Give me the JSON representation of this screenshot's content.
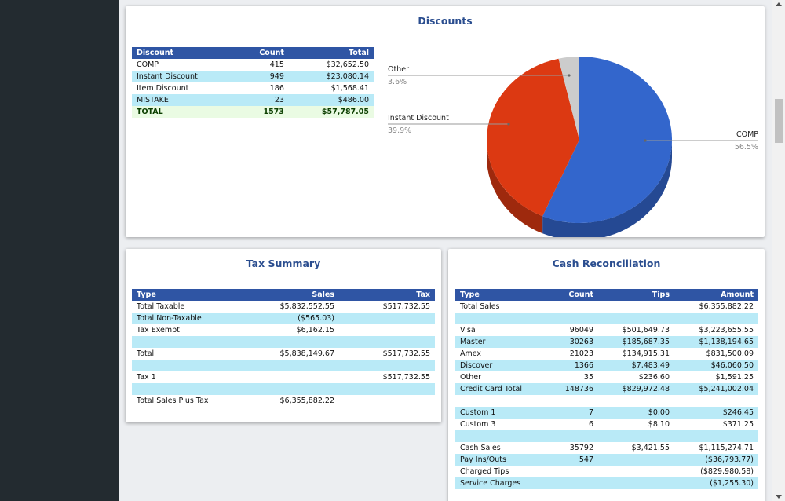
{
  "discounts": {
    "title": "Discounts",
    "columns": [
      "Discount",
      "Count",
      "Total"
    ],
    "rows": [
      {
        "name": "COMP",
        "count": "415",
        "total": "$32,652.50"
      },
      {
        "name": "Instant Discount",
        "count": "949",
        "total": "$23,080.14"
      },
      {
        "name": "Item Discount",
        "count": "186",
        "total": "$1,568.41"
      },
      {
        "name": "MISTAKE",
        "count": "23",
        "total": "$486.00"
      }
    ],
    "total_row": {
      "name": "TOTAL",
      "count": "1573",
      "total": "$57,787.05"
    }
  },
  "chart_data": {
    "type": "pie",
    "title": "",
    "slices": [
      {
        "label": "COMP",
        "percent": 56.5,
        "percent_label": "56.5%",
        "color": "#3366cc"
      },
      {
        "label": "Instant Discount",
        "percent": 39.9,
        "percent_label": "39.9%",
        "color": "#dc3912"
      },
      {
        "label": "Other",
        "percent": 3.6,
        "percent_label": "3.6%",
        "color": "#cccccc"
      }
    ]
  },
  "tax_summary": {
    "title": "Tax Summary",
    "columns": [
      "Type",
      "Sales",
      "Tax"
    ],
    "rows": [
      {
        "type": "Total Taxable",
        "sales": "$5,832,552.55",
        "tax": "$517,732.55"
      },
      {
        "type": "Total Non-Taxable",
        "sales": "($565.03)",
        "tax": ""
      },
      {
        "type": "Tax Exempt",
        "sales": "$6,162.15",
        "tax": ""
      },
      {
        "type": "",
        "sales": "",
        "tax": ""
      },
      {
        "type": "Total",
        "sales": "$5,838,149.67",
        "tax": "$517,732.55"
      },
      {
        "type": "",
        "sales": "",
        "tax": ""
      },
      {
        "type": "Tax 1",
        "sales": "",
        "tax": "$517,732.55"
      },
      {
        "type": "",
        "sales": "",
        "tax": ""
      },
      {
        "type": "Total Sales Plus Tax",
        "sales": "$6,355,882.22",
        "tax": ""
      }
    ]
  },
  "cash_reconciliation": {
    "title": "Cash Reconciliation",
    "columns": [
      "Type",
      "Count",
      "Tips",
      "Amount"
    ],
    "rows": [
      {
        "type": "Total Sales",
        "count": "",
        "tips": "",
        "amount": "$6,355,882.22"
      },
      {
        "type": "",
        "count": "",
        "tips": "",
        "amount": ""
      },
      {
        "type": "Visa",
        "count": "96049",
        "tips": "$501,649.73",
        "amount": "$3,223,655.55"
      },
      {
        "type": "Master",
        "count": "30263",
        "tips": "$185,687.35",
        "amount": "$1,138,194.65"
      },
      {
        "type": "Amex",
        "count": "21023",
        "tips": "$134,915.31",
        "amount": "$831,500.09"
      },
      {
        "type": "Discover",
        "count": "1366",
        "tips": "$7,483.49",
        "amount": "$46,060.50"
      },
      {
        "type": "Other",
        "count": "35",
        "tips": "$236.60",
        "amount": "$1,591.25"
      },
      {
        "type": "Credit Card Total",
        "count": "148736",
        "tips": "$829,972.48",
        "amount": "$5,241,002.04"
      },
      {
        "type": "",
        "count": "",
        "tips": "",
        "amount": ""
      },
      {
        "type": "Custom 1",
        "count": "7",
        "tips": "$0.00",
        "amount": "$246.45"
      },
      {
        "type": "Custom 3",
        "count": "6",
        "tips": "$8.10",
        "amount": "$371.25"
      },
      {
        "type": "",
        "count": "",
        "tips": "",
        "amount": ""
      },
      {
        "type": "Cash Sales",
        "count": "35792",
        "tips": "$3,421.55",
        "amount": "$1,115,274.71"
      },
      {
        "type": "Pay Ins/Outs",
        "count": "547",
        "tips": "",
        "amount": "($36,793.77)"
      },
      {
        "type": "Charged Tips",
        "count": "",
        "tips": "",
        "amount": "($829,980.58)"
      },
      {
        "type": "Service Charges",
        "count": "",
        "tips": "",
        "amount": "($1,255.30)"
      }
    ]
  }
}
